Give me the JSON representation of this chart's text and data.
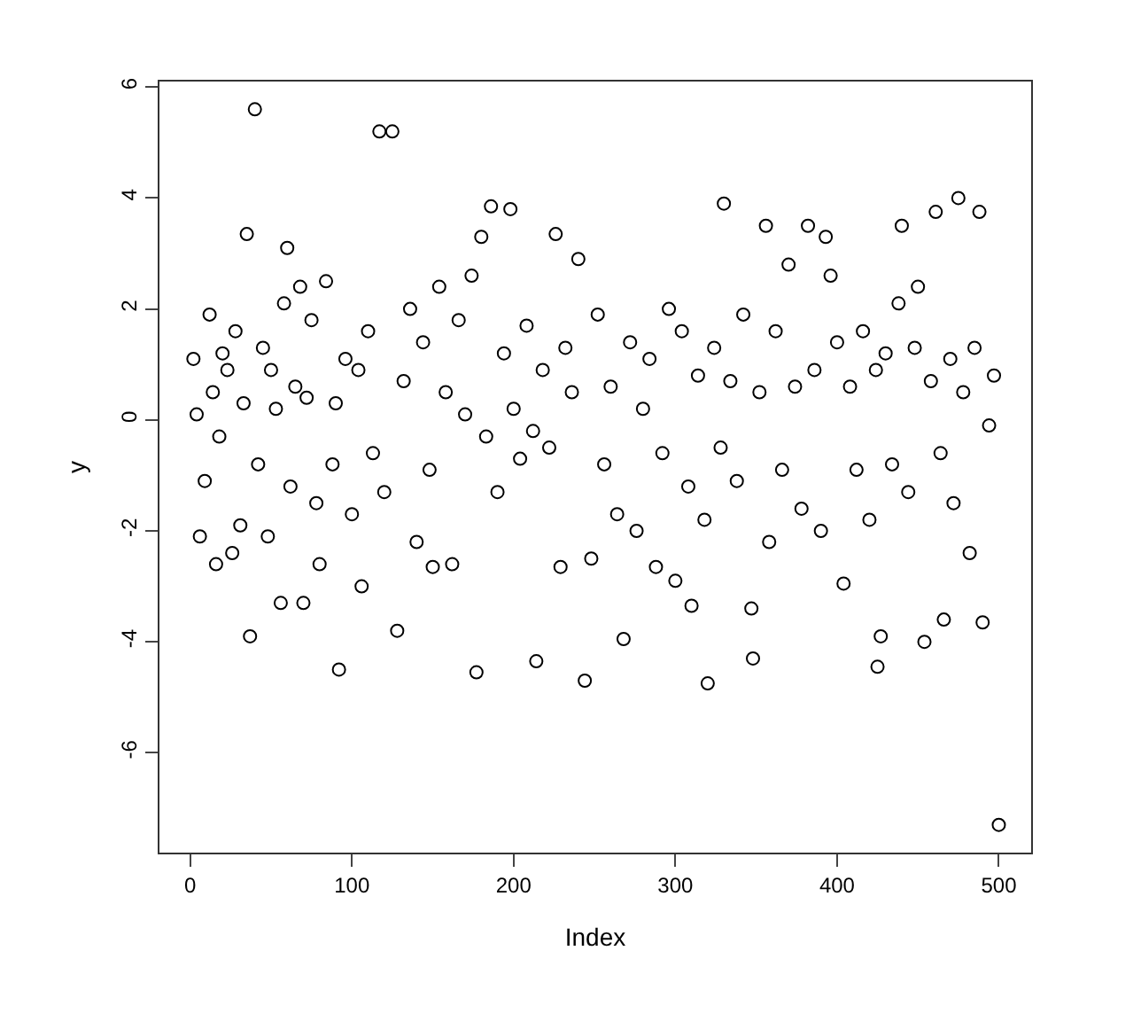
{
  "chart_data": {
    "type": "scatter",
    "xlabel": "Index",
    "ylabel": "y",
    "marker": "circle",
    "color": "#000000",
    "grid": false,
    "legend": false,
    "x": [
      2,
      4,
      6,
      9,
      12,
      14,
      16,
      18,
      20,
      23,
      26,
      28,
      31,
      33,
      35,
      37,
      40,
      42,
      45,
      48,
      50,
      53,
      56,
      58,
      60,
      62,
      65,
      68,
      70,
      72,
      75,
      78,
      80,
      84,
      88,
      90,
      92,
      96,
      100,
      104,
      106,
      110,
      113,
      117,
      120,
      125,
      128,
      132,
      136,
      140,
      144,
      148,
      150,
      154,
      158,
      162,
      166,
      170,
      174,
      177,
      180,
      183,
      186,
      190,
      194,
      198,
      200,
      204,
      208,
      212,
      214,
      218,
      222,
      226,
      229,
      232,
      236,
      240,
      244,
      248,
      252,
      256,
      260,
      264,
      268,
      272,
      276,
      280,
      284,
      288,
      292,
      296,
      300,
      304,
      308,
      310,
      314,
      318,
      320,
      324,
      328,
      330,
      334,
      338,
      342,
      347,
      348,
      352,
      356,
      358,
      362,
      366,
      370,
      374,
      378,
      382,
      386,
      390,
      393,
      396,
      400,
      404,
      408,
      412,
      416,
      420,
      424,
      425,
      427,
      430,
      434,
      438,
      440,
      444,
      448,
      450,
      454,
      458,
      461,
      464,
      466,
      470,
      472,
      475,
      478,
      482,
      485,
      488,
      490,
      494,
      497,
      500
    ],
    "values": [
      1.1,
      0.1,
      -2.1,
      -1.1,
      1.9,
      0.5,
      -2.6,
      -0.3,
      1.2,
      0.9,
      -2.4,
      1.6,
      -1.9,
      0.3,
      3.35,
      -3.9,
      5.6,
      -0.8,
      1.3,
      -2.1,
      0.9,
      0.2,
      -3.3,
      2.1,
      3.1,
      -1.2,
      0.6,
      2.4,
      -3.3,
      0.4,
      1.8,
      -1.5,
      -2.6,
      2.5,
      -0.8,
      0.3,
      -4.5,
      1.1,
      -1.7,
      0.9,
      -3.0,
      1.6,
      -0.6,
      5.2,
      -1.3,
      5.2,
      -3.8,
      0.7,
      2.0,
      -2.2,
      1.4,
      -0.9,
      -2.65,
      2.4,
      0.5,
      -2.6,
      1.8,
      0.1,
      2.6,
      -4.55,
      3.3,
      -0.3,
      3.85,
      -1.3,
      1.2,
      3.8,
      0.2,
      -0.7,
      1.7,
      -0.2,
      -4.35,
      0.9,
      -0.5,
      3.35,
      -2.65,
      1.3,
      0.5,
      2.9,
      -4.7,
      -2.5,
      1.9,
      -0.8,
      0.6,
      -1.7,
      -3.95,
      1.4,
      -2.0,
      0.2,
      1.1,
      -2.65,
      -0.6,
      2.0,
      -2.9,
      1.6,
      -1.2,
      -3.35,
      0.8,
      -1.8,
      -4.75,
      1.3,
      -0.5,
      3.9,
      0.7,
      -1.1,
      1.9,
      -3.4,
      -4.3,
      0.5,
      3.5,
      -2.2,
      1.6,
      -0.9,
      2.8,
      0.6,
      -1.6,
      3.5,
      0.9,
      -2.0,
      3.3,
      2.6,
      1.4,
      -2.95,
      0.6,
      -0.9,
      1.6,
      -1.8,
      0.9,
      -4.45,
      -3.9,
      1.2,
      -0.8,
      2.1,
      3.5,
      -1.3,
      1.3,
      2.4,
      -4.0,
      0.7,
      3.75,
      -0.6,
      -3.6,
      1.1,
      -1.5,
      4.0,
      0.5,
      -2.4,
      1.3,
      3.75,
      -3.65,
      -0.1,
      0.8,
      -7.3
    ],
    "xlim": [
      -19,
      520
    ],
    "ylim": [
      -7.8,
      6.1
    ],
    "xticks": [
      0,
      100,
      200,
      300,
      400,
      500
    ],
    "yticks": [
      -6,
      -4,
      -2,
      0,
      2,
      4,
      6
    ]
  }
}
